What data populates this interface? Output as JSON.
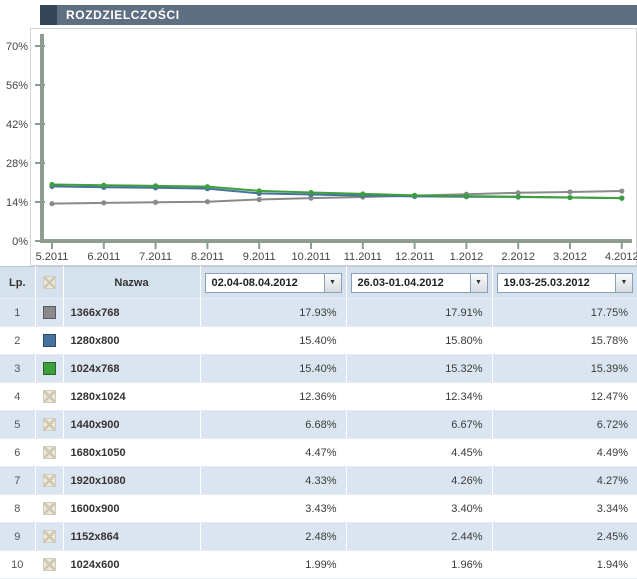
{
  "header": {
    "title": "ROZDZIELCZOŚCI"
  },
  "chart_data": {
    "type": "line",
    "title": "ROZDZIELCZOŚCI",
    "x": [
      "5.2011",
      "6.2011",
      "7.2011",
      "8.2011",
      "9.2011",
      "10.2011",
      "11.2011",
      "12.2011",
      "1.2012",
      "2.2012",
      "3.2012",
      "4.2012"
    ],
    "yticks": [
      0,
      14,
      28,
      42,
      56,
      70
    ],
    "ylim": [
      0,
      70
    ],
    "ylabel": "%",
    "grid": false,
    "legend_position": "none",
    "axis_color": "#8e9d92",
    "series": [
      {
        "name": "1366x768",
        "color": "#8a8a8a",
        "values": [
          13.4,
          13.7,
          13.9,
          14.1,
          14.9,
          15.4,
          15.8,
          16.3,
          16.8,
          17.3,
          17.6,
          17.93
        ]
      },
      {
        "name": "1280x800",
        "color": "#46739e",
        "values": [
          19.6,
          19.3,
          19.1,
          18.8,
          17.1,
          16.7,
          16.3,
          16.0,
          15.9,
          15.8,
          15.6,
          15.4
        ]
      },
      {
        "name": "1024x768",
        "color": "#3da03d",
        "values": [
          20.3,
          20.0,
          19.8,
          19.5,
          18.0,
          17.4,
          16.9,
          16.4,
          16.1,
          15.9,
          15.6,
          15.4
        ]
      }
    ]
  },
  "table": {
    "columns": {
      "lp": "Lp.",
      "nazwa": "Nazwa",
      "periods": [
        "02.04-08.04.2012",
        "26.03-01.04.2012",
        "19.03-25.03.2012"
      ]
    },
    "rows": [
      {
        "lp": "1",
        "swatch": "#8a8a8a",
        "name": "1366x768",
        "values": [
          "17.93%",
          "17.91%",
          "17.75%"
        ]
      },
      {
        "lp": "2",
        "swatch": "#46739e",
        "name": "1280x800",
        "values": [
          "15.40%",
          "15.80%",
          "15.78%"
        ]
      },
      {
        "lp": "3",
        "swatch": "#3da03d",
        "name": "1024x768",
        "values": [
          "15.40%",
          "15.32%",
          "15.39%"
        ]
      },
      {
        "lp": "4",
        "swatch": null,
        "name": "1280x1024",
        "values": [
          "12.36%",
          "12.34%",
          "12.47%"
        ]
      },
      {
        "lp": "5",
        "swatch": null,
        "name": "1440x900",
        "values": [
          "6.68%",
          "6.67%",
          "6.72%"
        ]
      },
      {
        "lp": "6",
        "swatch": null,
        "name": "1680x1050",
        "values": [
          "4.47%",
          "4.45%",
          "4.49%"
        ]
      },
      {
        "lp": "7",
        "swatch": null,
        "name": "1920x1080",
        "values": [
          "4.33%",
          "4.26%",
          "4.27%"
        ]
      },
      {
        "lp": "8",
        "swatch": null,
        "name": "1600x900",
        "values": [
          "3.43%",
          "3.40%",
          "3.34%"
        ]
      },
      {
        "lp": "9",
        "swatch": null,
        "name": "1152x864",
        "values": [
          "2.48%",
          "2.44%",
          "2.45%"
        ]
      },
      {
        "lp": "10",
        "swatch": null,
        "name": "1024x600",
        "values": [
          "1.99%",
          "1.96%",
          "1.94%"
        ]
      }
    ]
  }
}
